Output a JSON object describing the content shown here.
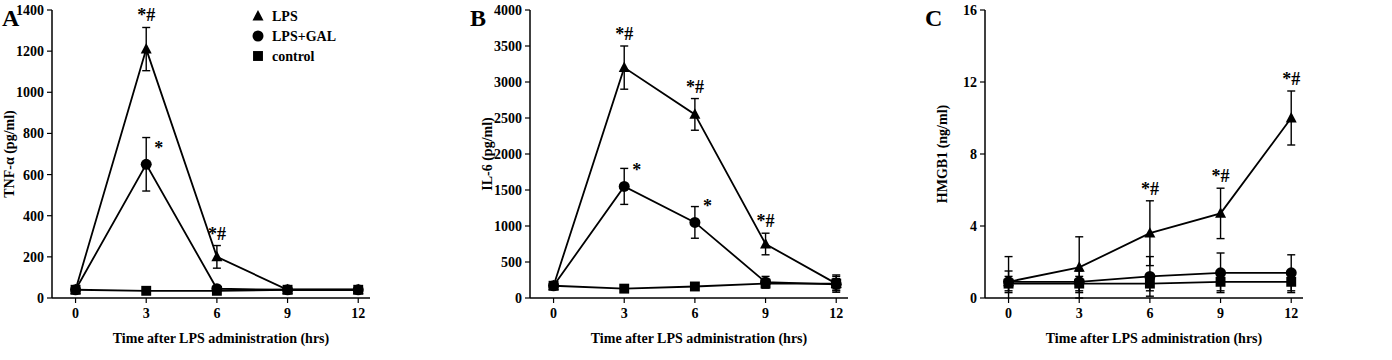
{
  "chart_data": [
    {
      "type": "line",
      "panel": "A",
      "x_label": "Time after LPS administration (hrs)",
      "y_label": "TNF-α (pg/ml)",
      "x": [
        0,
        3,
        6,
        9,
        12
      ],
      "xlim": [
        -1,
        12.5
      ],
      "xticks": [
        0,
        3,
        6,
        9,
        12
      ],
      "ylim": [
        0,
        1400
      ],
      "yticks": [
        0,
        200,
        400,
        600,
        800,
        1000,
        1200,
        1400
      ],
      "legend": "top",
      "series": [
        {
          "name": "LPS",
          "color": "#000000",
          "marker": "triangle",
          "values": [
            40,
            1210,
            200,
            40,
            40
          ],
          "errors": [
            10,
            105,
            55,
            10,
            10
          ],
          "annotations": [
            null,
            "*#",
            "*#",
            null,
            null
          ]
        },
        {
          "name": "LPS+GAL",
          "color": "#000000",
          "marker": "circle",
          "values": [
            40,
            650,
            45,
            40,
            40
          ],
          "errors": [
            10,
            130,
            15,
            10,
            10
          ],
          "annotations": [
            null,
            "*",
            null,
            null,
            null
          ]
        },
        {
          "name": "control",
          "color": "#000000",
          "marker": "square",
          "values": [
            40,
            35,
            35,
            40,
            40
          ],
          "errors": [
            10,
            10,
            10,
            10,
            10
          ],
          "annotations": [
            null,
            null,
            null,
            null,
            null
          ]
        }
      ]
    },
    {
      "type": "line",
      "panel": "B",
      "x_label": "Time after LPS administration (hrs)",
      "y_label": "IL-6 (pg/ml)",
      "x": [
        0,
        3,
        6,
        9,
        12
      ],
      "xlim": [
        -1,
        12.5
      ],
      "xticks": [
        0,
        3,
        6,
        9,
        12
      ],
      "ylim": [
        0,
        4000
      ],
      "yticks": [
        0,
        500,
        1000,
        1500,
        2000,
        2500,
        3000,
        3500,
        4000
      ],
      "series": [
        {
          "name": "LPS",
          "color": "#000000",
          "marker": "triangle",
          "values": [
            170,
            3200,
            2550,
            750,
            200
          ],
          "errors": [
            30,
            300,
            220,
            150,
            100
          ],
          "annotations": [
            null,
            "*#",
            "*#",
            "*#",
            null
          ]
        },
        {
          "name": "LPS+GAL",
          "color": "#000000",
          "marker": "circle",
          "values": [
            170,
            1550,
            1050,
            220,
            190
          ],
          "errors": [
            30,
            250,
            220,
            80,
            80
          ],
          "annotations": [
            null,
            "*",
            "*",
            null,
            null
          ]
        },
        {
          "name": "control",
          "color": "#000000",
          "marker": "square",
          "values": [
            170,
            130,
            160,
            200,
            200
          ],
          "errors": [
            30,
            30,
            30,
            60,
            120
          ],
          "annotations": [
            null,
            null,
            null,
            null,
            null
          ]
        }
      ]
    },
    {
      "type": "line",
      "panel": "C",
      "x_label": "Time after LPS administration (hrs)",
      "y_label": "HMGB1 (ng/ml)",
      "x": [
        0,
        3,
        6,
        9,
        12
      ],
      "xlim": [
        -1,
        12.5
      ],
      "xticks": [
        0,
        3,
        6,
        9,
        12
      ],
      "ylim": [
        0,
        16
      ],
      "yticks": [
        0,
        4,
        8,
        12,
        16
      ],
      "series": [
        {
          "name": "LPS",
          "color": "#000000",
          "marker": "triangle",
          "values": [
            0.9,
            1.7,
            3.6,
            4.7,
            10
          ],
          "errors": [
            1.4,
            1.7,
            1.8,
            1.4,
            1.5
          ],
          "annotations": [
            null,
            null,
            "*#",
            "*#",
            "*#"
          ]
        },
        {
          "name": "LPS+GAL",
          "color": "#000000",
          "marker": "circle",
          "values": [
            0.9,
            0.9,
            1.2,
            1.4,
            1.4
          ],
          "errors": [
            0.6,
            0.6,
            1.1,
            1.1,
            1.0
          ],
          "annotations": [
            null,
            null,
            null,
            null,
            null
          ]
        },
        {
          "name": "control",
          "color": "#000000",
          "marker": "square",
          "values": [
            0.8,
            0.8,
            0.8,
            0.9,
            0.9
          ],
          "errors": [
            0.4,
            0.4,
            0.4,
            0.5,
            0.6
          ],
          "annotations": [
            null,
            null,
            null,
            null,
            null
          ]
        }
      ]
    }
  ]
}
